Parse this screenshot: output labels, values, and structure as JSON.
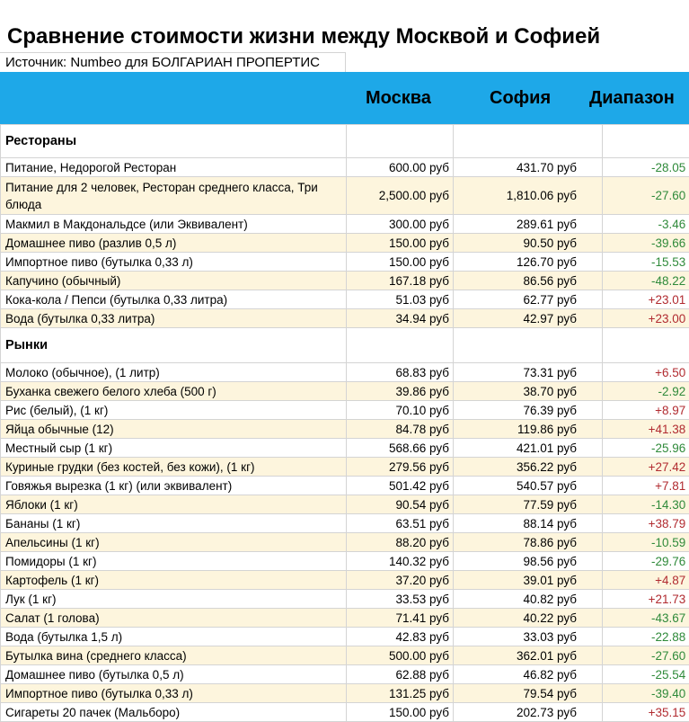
{
  "title": "Сравнение стоимости жизни между Москвой и Софией",
  "source": "Источник: Numbeo для БОЛГАРИАН ПРОПЕРТИС",
  "header": {
    "col_moscow": "Москва",
    "col_sofia": "София",
    "col_range": "Диапазон"
  },
  "colors": {
    "header_bg": "#1ea8e8",
    "alt_row_bg": "#fdf5dd",
    "negative": "#2f8a3a",
    "positive": "#b12b30"
  },
  "sections": [
    {
      "title": "Рестораны",
      "rows": [
        {
          "name": "Питание, Недорогой Ресторан",
          "moscow": "600.00 руб",
          "sofia": "431.70 руб",
          "diff": "-28.05 %",
          "sign": "neg"
        },
        {
          "name": "Питание для 2 человек, Ресторан среднего класса, Три блюда",
          "moscow": "2,500.00 руб",
          "sofia": "1,810.06 руб",
          "diff": "-27.60 %",
          "sign": "neg",
          "tall": true
        },
        {
          "name": "Макмил в Макдональдсе (или Эквивалент)",
          "moscow": "300.00 руб",
          "sofia": "289.61 руб",
          "diff": "-3.46 %",
          "sign": "neg"
        },
        {
          "name": "Домашнее пиво (разлив 0,5 л)",
          "moscow": "150.00 руб",
          "sofia": "90.50 руб",
          "diff": "-39.66 %",
          "sign": "neg"
        },
        {
          "name": "Импортное пиво (бутылка 0,33 л)",
          "moscow": "150.00 руб",
          "sofia": "126.70 руб",
          "diff": "-15.53 %",
          "sign": "neg"
        },
        {
          "name": "Капучино (обычный)",
          "moscow": "167.18 руб",
          "sofia": "86.56 руб",
          "diff": "-48.22 %",
          "sign": "neg"
        },
        {
          "name": "Кока-кола / Пепси (бутылка 0,33 литра)",
          "moscow": "51.03 руб",
          "sofia": "62.77 руб",
          "diff": "+23.01 %",
          "sign": "pos"
        },
        {
          "name": "Вода (бутылка 0,33 литра)",
          "moscow": "34.94 руб",
          "sofia": "42.97 руб",
          "diff": "+23.00 %",
          "sign": "pos"
        }
      ]
    },
    {
      "title": "Рынки",
      "rows": [
        {
          "name": "Молоко (обычное), (1 литр)",
          "moscow": "68.83 руб",
          "sofia": "73.31 руб",
          "diff": "+6.50 %",
          "sign": "pos"
        },
        {
          "name": "Буханка свежего белого хлеба (500 г)",
          "moscow": "39.86 руб",
          "sofia": "38.70 руб",
          "diff": "-2.92 %",
          "sign": "neg"
        },
        {
          "name": "Рис (белый), (1 кг)",
          "moscow": "70.10 руб",
          "sofia": "76.39 руб",
          "diff": "+8.97 %",
          "sign": "pos"
        },
        {
          "name": "Яйца обычные (12)",
          "moscow": "84.78 руб",
          "sofia": "119.86 руб",
          "diff": "+41.38 %",
          "sign": "pos"
        },
        {
          "name": "Местный сыр (1 кг)",
          "moscow": "568.66 руб",
          "sofia": "421.01 руб",
          "diff": "-25.96 %",
          "sign": "neg"
        },
        {
          "name": "Куриные грудки (без костей, без кожи), (1 кг)",
          "moscow": "279.56 руб",
          "sofia": "356.22 руб",
          "diff": "+27.42 %",
          "sign": "pos"
        },
        {
          "name": "Говяжья вырезка (1 кг) (или эквивалент)",
          "moscow": "501.42 руб",
          "sofia": "540.57 руб",
          "diff": "+7.81 %",
          "sign": "pos"
        },
        {
          "name": "Яблоки (1 кг)",
          "moscow": "90.54 руб",
          "sofia": "77.59 руб",
          "diff": "-14.30 %",
          "sign": "neg"
        },
        {
          "name": "Бананы (1 кг)",
          "moscow": "63.51 руб",
          "sofia": "88.14 руб",
          "diff": "+38.79 %",
          "sign": "pos"
        },
        {
          "name": "Апельсины (1 кг)",
          "moscow": "88.20 руб",
          "sofia": "78.86 руб",
          "diff": "-10.59 %",
          "sign": "neg"
        },
        {
          "name": "Помидоры (1 кг)",
          "moscow": "140.32 руб",
          "sofia": "98.56 руб",
          "diff": "-29.76 %",
          "sign": "neg"
        },
        {
          "name": "Картофель (1 кг)",
          "moscow": "37.20 руб",
          "sofia": "39.01 руб",
          "diff": "+4.87 %",
          "sign": "pos"
        },
        {
          "name": "Лук (1 кг)",
          "moscow": "33.53 руб",
          "sofia": "40.82 руб",
          "diff": "+21.73 %",
          "sign": "pos"
        },
        {
          "name": "Салат (1 голова)",
          "moscow": "71.41 руб",
          "sofia": "40.22 руб",
          "diff": "-43.67 %",
          "sign": "neg"
        },
        {
          "name": "Вода (бутылка 1,5 л)",
          "moscow": "42.83 руб",
          "sofia": "33.03 руб",
          "diff": "-22.88 %",
          "sign": "neg"
        },
        {
          "name": "Бутылка вина (среднего класса)",
          "moscow": "500.00 руб",
          "sofia": "362.01 руб",
          "diff": "-27.60 %",
          "sign": "neg"
        },
        {
          "name": "Домашнее пиво (бутылка 0,5 л)",
          "moscow": "62.88 руб",
          "sofia": "46.82 руб",
          "diff": "-25.54 %",
          "sign": "neg"
        },
        {
          "name": "Импортное пиво (бутылка 0,33 л)",
          "moscow": "131.25 руб",
          "sofia": "79.54 руб",
          "diff": "-39.40 %",
          "sign": "neg"
        },
        {
          "name": "Сигареты 20 пачек (Мальборо)",
          "moscow": "150.00 руб",
          "sofia": "202.73 руб",
          "diff": "+35.15 %",
          "sign": "pos"
        }
      ]
    }
  ]
}
